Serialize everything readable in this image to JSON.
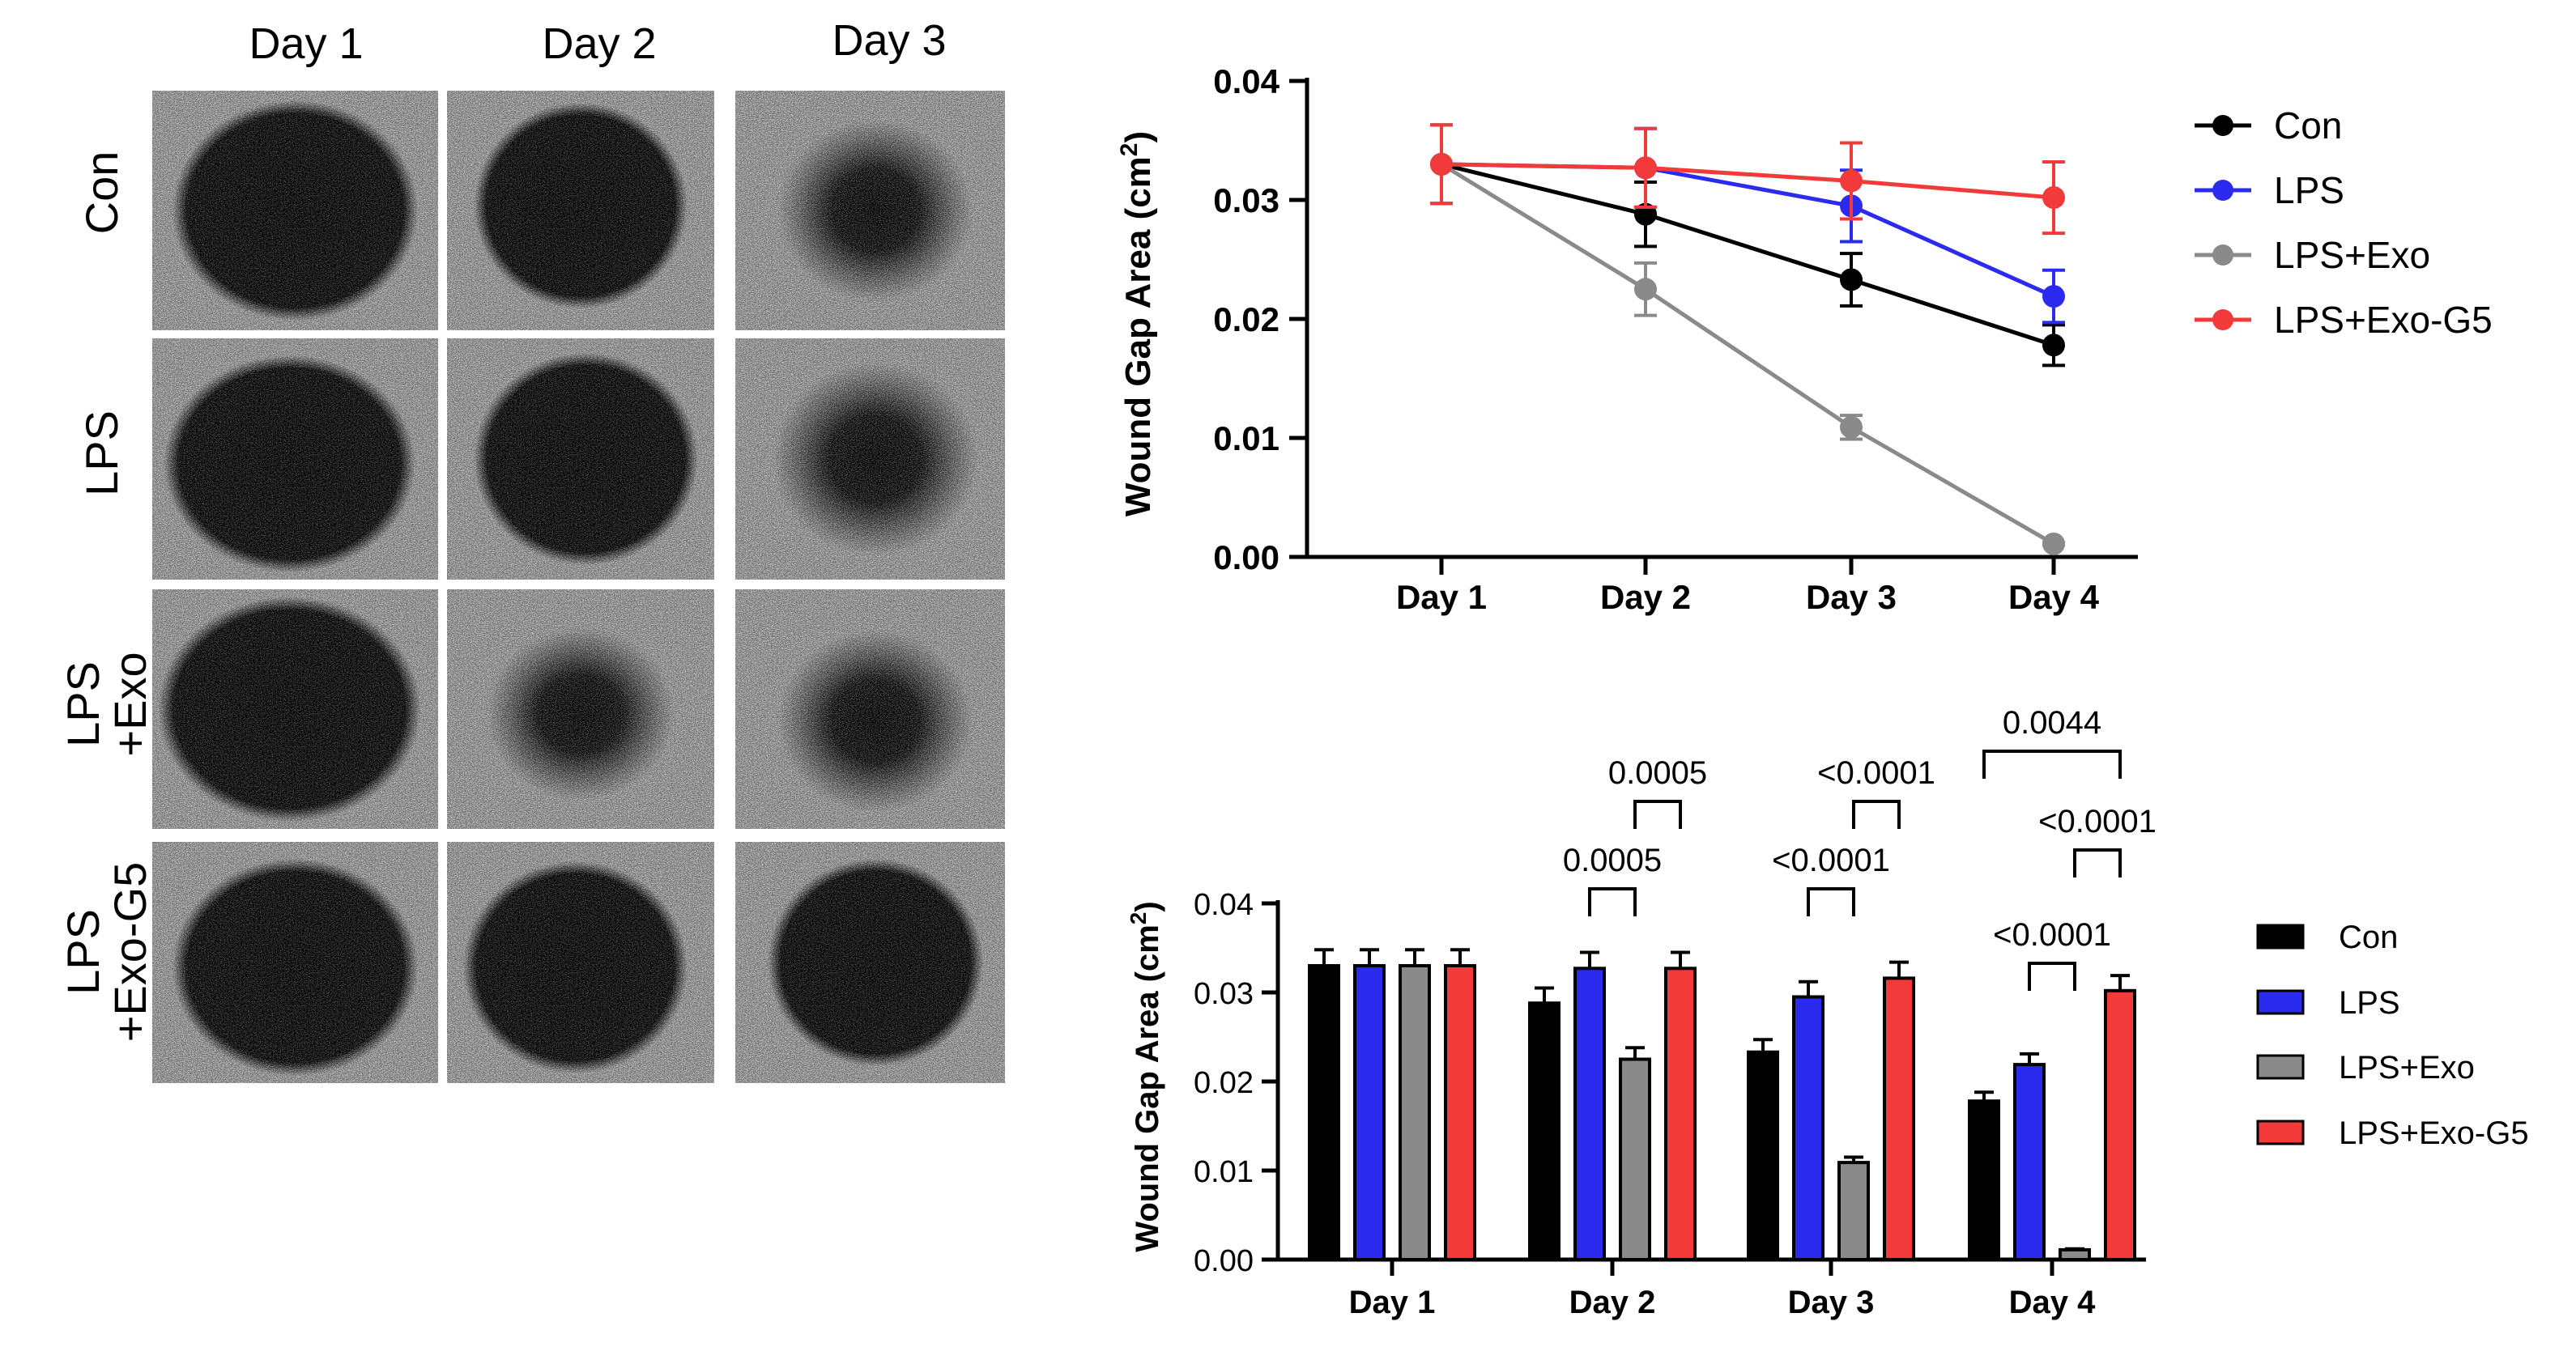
{
  "colors": {
    "con": "#000000",
    "lps": "#2b2bf0",
    "exo": "#8a8a8a",
    "g5": "#f23a3a",
    "axis": "#000000"
  },
  "micrographs": {
    "columns": [
      "Day 1",
      "Day 2",
      "Day 3"
    ],
    "rows": [
      {
        "line1": "Con",
        "line2": ""
      },
      {
        "line1": "LPS",
        "line2": ""
      },
      {
        "line1": "LPS",
        "line2": "+Exo"
      },
      {
        "line1": "LPS",
        "line2": "+Exo-G5"
      }
    ]
  },
  "chart_data": [
    {
      "type": "line",
      "ylabel_main": "Wound Gap Area (cm",
      "ylabel_sup": "2",
      "ylabel_end": ")",
      "xlabel": "",
      "categories": [
        "Day 1",
        "Day 2",
        "Day 3",
        "Day 4"
      ],
      "ylim": [
        0,
        0.04
      ],
      "yticks": [
        "0.00",
        "0.01",
        "0.02",
        "0.03",
        "0.04"
      ],
      "series": [
        {
          "name": "Con",
          "color_key": "con",
          "values": [
            0.033,
            0.0288,
            0.0233,
            0.0178
          ],
          "errors": [
            0.0033,
            0.0027,
            0.0022,
            0.0017
          ]
        },
        {
          "name": "LPS",
          "color_key": "lps",
          "values": [
            0.033,
            0.0327,
            0.0295,
            0.0219
          ],
          "errors": [
            0.0033,
            0.0033,
            0.003,
            0.0022
          ]
        },
        {
          "name": "LPS+Exo",
          "color_key": "exo",
          "values": [
            0.033,
            0.0225,
            0.0109,
            0.0011
          ],
          "errors": [
            0.0033,
            0.0022,
            0.001,
            0.0001
          ]
        },
        {
          "name": "LPS+Exo-G5",
          "color_key": "g5",
          "values": [
            0.033,
            0.0327,
            0.0316,
            0.0302
          ],
          "errors": [
            0.0033,
            0.0033,
            0.0032,
            0.003
          ]
        }
      ]
    },
    {
      "type": "bar",
      "ylabel_main": "Wound Gap Area (cm",
      "ylabel_sup": "2",
      "ylabel_end": ")",
      "xlabel": "",
      "categories": [
        "Day 1",
        "Day 2",
        "Day 3",
        "Day 4"
      ],
      "ylim": [
        0,
        0.04
      ],
      "yticks": [
        "0.00",
        "0.01",
        "0.02",
        "0.03",
        "0.04"
      ],
      "series": [
        {
          "name": "Con",
          "color_key": "con",
          "values": [
            0.033,
            0.0288,
            0.0233,
            0.0178
          ],
          "errors": [
            0.0018,
            0.0017,
            0.0014,
            0.001
          ]
        },
        {
          "name": "LPS",
          "color_key": "lps",
          "values": [
            0.033,
            0.0327,
            0.0295,
            0.0219
          ],
          "errors": [
            0.0018,
            0.0018,
            0.0017,
            0.0012
          ]
        },
        {
          "name": "LPS+Exo",
          "color_key": "exo",
          "values": [
            0.033,
            0.0225,
            0.0109,
            0.0011
          ],
          "errors": [
            0.0018,
            0.0013,
            0.0006,
            0.0001
          ]
        },
        {
          "name": "LPS+Exo-G5",
          "color_key": "g5",
          "values": [
            0.033,
            0.0327,
            0.0316,
            0.0302
          ],
          "errors": [
            0.0018,
            0.0018,
            0.0018,
            0.0017
          ]
        }
      ],
      "significance": [
        {
          "group": 1,
          "from": 1,
          "to": 2,
          "label": "0.0005"
        },
        {
          "group": 1,
          "from": 2,
          "to": 3,
          "label": "0.0005"
        },
        {
          "group": 2,
          "from": 1,
          "to": 2,
          "label": "<0.0001"
        },
        {
          "group": 2,
          "from": 2,
          "to": 3,
          "label": "<0.0001"
        },
        {
          "group": 3,
          "from": 1,
          "to": 2,
          "label": "<0.0001"
        },
        {
          "group": 3,
          "from": 2,
          "to": 3,
          "label": "<0.0001"
        },
        {
          "group": 3,
          "from": 0,
          "to": 3,
          "label": "0.0044"
        }
      ]
    }
  ]
}
